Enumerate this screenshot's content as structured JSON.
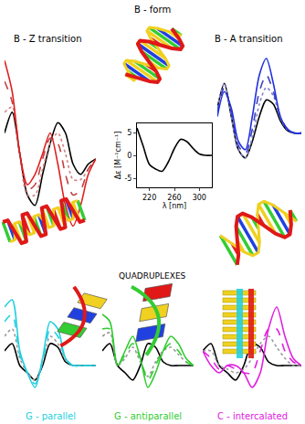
{
  "heading": "QUADRUPLEXES",
  "chart_data": [
    {
      "type": "line",
      "title": "B - Z transition",
      "tick_labels": false,
      "x": [
        200,
        210,
        220,
        230,
        240,
        250,
        260,
        270,
        280,
        290,
        300,
        310,
        320
      ],
      "xlim": [
        200,
        320
      ],
      "ylim": [
        -8,
        11
      ],
      "series": [
        {
          "color": "#000000",
          "line_style": "solid",
          "values": [
            3,
            5,
            1,
            -3,
            -4,
            -1,
            2,
            4,
            3,
            0,
            -1,
            0,
            0.5
          ]
        },
        {
          "color": "#d08080",
          "line_style": "dot",
          "values": [
            5,
            5.5,
            1,
            -3,
            -3,
            -0.5,
            2,
            3,
            1,
            -1.5,
            -1.5,
            -0.5,
            0.5
          ]
        },
        {
          "color": "#c04040",
          "line_style": "dash",
          "values": [
            8,
            6,
            1,
            -2.5,
            -2,
            0.5,
            2.5,
            2,
            -1,
            -3,
            -2.5,
            -0.5,
            0.5
          ]
        },
        {
          "color": "#e02020",
          "line_style": "solid",
          "values": [
            10,
            7,
            1,
            -2,
            -1,
            1,
            3,
            0,
            -4,
            -6,
            -4,
            -1,
            0.5
          ]
        }
      ]
    },
    {
      "type": "line",
      "title": "B - form",
      "xlabel": "λ [nm]",
      "ylabel": "Δε [M⁻¹cm⁻¹]",
      "grid": false,
      "x": [
        200,
        210,
        220,
        230,
        240,
        250,
        260,
        270,
        280,
        290,
        300,
        310,
        320
      ],
      "xlim": [
        200,
        320
      ],
      "ylim": [
        -7,
        7
      ],
      "xticks": [
        220,
        260,
        300
      ],
      "yticks": [
        -5,
        0,
        5
      ],
      "series": [
        {
          "color": "#000000",
          "line_style": "solid",
          "values": [
            6,
            2,
            -2,
            -3,
            -3.5,
            -1.5,
            1.5,
            3.5,
            3,
            1.5,
            0.3,
            0,
            0
          ]
        }
      ]
    },
    {
      "type": "line",
      "title": "B - A transition",
      "tick_labels": false,
      "x": [
        200,
        210,
        220,
        230,
        240,
        250,
        260,
        270,
        280,
        290,
        300,
        310,
        320
      ],
      "xlim": [
        200,
        320
      ],
      "ylim": [
        -6,
        10
      ],
      "series": [
        {
          "color": "#000000",
          "line_style": "solid",
          "values": [
            3,
            6,
            2,
            -2,
            -3,
            -1,
            2,
            4,
            3.5,
            1.5,
            0.3,
            0,
            0
          ]
        },
        {
          "color": "#8080d0",
          "line_style": "dot",
          "values": [
            3,
            6,
            2,
            -2,
            -3,
            -0.5,
            3.5,
            5.5,
            4.5,
            1.8,
            0.4,
            0,
            0
          ]
        },
        {
          "color": "#4040c0",
          "line_style": "dash",
          "values": [
            2.5,
            5.5,
            2.5,
            -1.5,
            -2.5,
            0.5,
            5,
            7,
            5,
            2,
            0.5,
            0,
            0
          ]
        },
        {
          "color": "#2030e0",
          "line_style": "solid",
          "values": [
            2,
            5,
            3,
            -1,
            -2,
            2,
            7,
            9,
            6,
            2,
            0.5,
            0,
            0
          ]
        }
      ]
    },
    {
      "type": "line",
      "title": "G - parallel",
      "color": "#22d0e0",
      "tick_labels": false,
      "x": [
        200,
        210,
        220,
        230,
        240,
        250,
        260,
        270,
        280,
        290,
        300,
        310,
        320
      ],
      "xlim": [
        200,
        320
      ],
      "ylim": [
        -5,
        10
      ],
      "series": [
        {
          "color": "#000000",
          "line_style": "solid",
          "values": [
            2,
            3,
            0,
            -1,
            -2,
            0,
            3,
            2.5,
            0.5,
            0,
            0,
            0,
            0
          ]
        },
        {
          "color": "#999999",
          "line_style": "dot",
          "values": [
            4,
            5,
            1,
            -1,
            -2,
            0.5,
            4,
            3,
            0.8,
            0,
            0,
            0,
            0
          ]
        },
        {
          "color": "#22d0e0",
          "line_style": "dash",
          "values": [
            6,
            7,
            1.5,
            -1,
            -2.5,
            0.5,
            5,
            4,
            1,
            0,
            0,
            0,
            0
          ]
        },
        {
          "color": "#22d0e0",
          "line_style": "solid",
          "values": [
            8,
            9,
            2,
            -1,
            -3,
            1,
            6,
            5,
            1,
            0,
            0,
            0,
            0
          ]
        }
      ]
    },
    {
      "type": "line",
      "title": "G - antiparallel",
      "color": "#30cc30",
      "tick_labels": false,
      "x": [
        200,
        210,
        220,
        230,
        240,
        250,
        260,
        270,
        280,
        290,
        300,
        310,
        320
      ],
      "xlim": [
        200,
        320
      ],
      "ylim": [
        -5,
        10
      ],
      "series": [
        {
          "color": "#000000",
          "line_style": "solid",
          "values": [
            2,
            3,
            0,
            -1,
            -2,
            0,
            3,
            2.5,
            0.5,
            0,
            0,
            0,
            0
          ]
        },
        {
          "color": "#999999",
          "line_style": "dot",
          "values": [
            4,
            4.5,
            0,
            1,
            2.5,
            0.5,
            -1.5,
            0.5,
            2,
            2.5,
            1.5,
            0.5,
            0
          ]
        },
        {
          "color": "#30cc30",
          "line_style": "dash",
          "values": [
            5,
            5,
            0,
            1.5,
            3,
            1,
            -2,
            0,
            2,
            3,
            2,
            0.5,
            0
          ]
        },
        {
          "color": "#30cc30",
          "line_style": "solid",
          "values": [
            7,
            6,
            0,
            2,
            4,
            1,
            -3,
            -1,
            2,
            4,
            3,
            1,
            0
          ]
        }
      ]
    },
    {
      "type": "line",
      "title": "C - intercalated",
      "color": "#e020e0",
      "tick_labels": false,
      "x": [
        200,
        210,
        220,
        230,
        240,
        250,
        260,
        270,
        280,
        290,
        300,
        310,
        320
      ],
      "xlim": [
        200,
        320
      ],
      "ylim": [
        -5,
        10
      ],
      "series": [
        {
          "color": "#000000",
          "line_style": "solid",
          "values": [
            2,
            3,
            0,
            -1,
            -2,
            0,
            3,
            2.5,
            0.5,
            0,
            0,
            0,
            0
          ]
        },
        {
          "color": "#999999",
          "line_style": "dot",
          "values": [
            2,
            2,
            0,
            -0.5,
            -1,
            -0.5,
            1,
            3,
            4,
            2.5,
            1,
            0,
            0
          ]
        },
        {
          "color": "#e020e0",
          "line_style": "dash",
          "values": [
            2,
            1,
            -0.5,
            0,
            -0.5,
            -1,
            -1,
            2,
            5,
            5,
            2,
            0.5,
            0
          ]
        },
        {
          "color": "#e020e0",
          "line_style": "solid",
          "values": [
            2,
            0,
            -1,
            0,
            0,
            -1,
            -3,
            -1,
            5,
            8,
            4,
            1,
            0
          ]
        }
      ]
    }
  ]
}
